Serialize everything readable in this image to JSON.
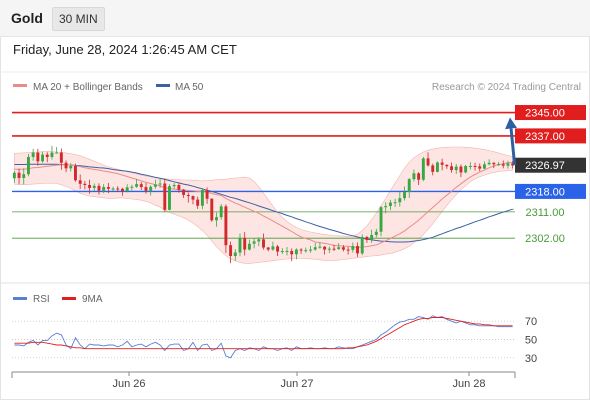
{
  "header": {
    "asset": "Gold",
    "timeframe": "30 MIN",
    "datetime": "Friday, June 28, 2024 1:26:45 AM CET"
  },
  "legend": {
    "ma20": "MA 20 + Bollinger Bands",
    "ma50": "MA 50",
    "credit": "Research © 2024 Trading Central"
  },
  "rsi_legend": {
    "rsi": "RSI",
    "ma9": "9MA"
  },
  "colors": {
    "up_candle": "#38a845",
    "down_candle": "#d22a2a",
    "ma20": "#e98c87",
    "ma50": "#3d5fa8",
    "band": "#fbd0cc",
    "resistance": "#e01e1e",
    "support": "#2a62e8",
    "minor_level": "#4a9a3a",
    "arrow": "#2f5fa3",
    "price_tag": "#333333"
  },
  "chart_data": {
    "type": "candlestick",
    "x_ticks": [
      "Jun 26",
      "Jun 27",
      "Jun 28"
    ],
    "current_price": "2326.97",
    "levels": [
      {
        "value": "2345.00",
        "kind": "resistance"
      },
      {
        "value": "2337.00",
        "kind": "resistance"
      },
      {
        "value": "2318.00",
        "kind": "support"
      },
      {
        "value": "2311.00",
        "kind": "minor"
      },
      {
        "value": "2302.00",
        "kind": "minor"
      }
    ],
    "forecast_arrow": {
      "from": 2327,
      "to": 2345
    },
    "y_range": [
      2287,
      2351
    ],
    "candles": [
      [
        2322.5,
        2324.4,
        2321.0,
        2325.0
      ],
      [
        2324.4,
        2322.6,
        2320.5,
        2325.8
      ],
      [
        2322.6,
        2323.9,
        2320.4,
        2325.9
      ],
      [
        2323.9,
        2329.8,
        2323.2,
        2330.8
      ],
      [
        2329.8,
        2331.3,
        2328.5,
        2332.6
      ],
      [
        2331.3,
        2328.3,
        2326.8,
        2332.6
      ],
      [
        2328.3,
        2330.6,
        2327.8,
        2331.6
      ],
      [
        2330.6,
        2329.8,
        2328.0,
        2331.4
      ],
      [
        2329.8,
        2331.3,
        2328.9,
        2333.6
      ],
      [
        2331.3,
        2331.3,
        2331.2,
        2333.2
      ],
      [
        2331.3,
        2327.8,
        2325.4,
        2332.7
      ],
      [
        2327.8,
        2325.9,
        2324.6,
        2328.6
      ],
      [
        2325.9,
        2326.7,
        2324.8,
        2327.7
      ],
      [
        2326.7,
        2321.8,
        2321.3,
        2327.5
      ],
      [
        2321.8,
        2320.6,
        2318.8,
        2323.8
      ],
      [
        2320.6,
        2320.2,
        2318.7,
        2321.6
      ],
      [
        2320.2,
        2319.2,
        2317.2,
        2322.0
      ],
      [
        2319.2,
        2319.9,
        2318.1,
        2320.7
      ],
      [
        2319.9,
        2318.3,
        2316.9,
        2320.8
      ],
      [
        2318.3,
        2319.5,
        2317.4,
        2320.5
      ],
      [
        2319.5,
        2318.9,
        2317.4,
        2320.9
      ],
      [
        2318.9,
        2319.0,
        2318.1,
        2319.6
      ],
      [
        2319.0,
        2318.9,
        2317.8,
        2319.8
      ],
      [
        2318.9,
        2318.1,
        2316.5,
        2319.2
      ],
      [
        2318.1,
        2319.4,
        2317.7,
        2320.5
      ],
      [
        2319.4,
        2319.6,
        2318.4,
        2320.3
      ],
      [
        2319.6,
        2320.5,
        2319.2,
        2322.2
      ],
      [
        2320.5,
        2319.5,
        2318.5,
        2321.2
      ],
      [
        2319.5,
        2318.2,
        2317.2,
        2320.9
      ],
      [
        2318.2,
        2319.6,
        2316.6,
        2320.1
      ],
      [
        2319.6,
        2320.4,
        2318.9,
        2322.0
      ],
      [
        2320.4,
        2320.7,
        2319.2,
        2322.4
      ],
      [
        2320.7,
        2311.7,
        2310.9,
        2322.3
      ],
      [
        2311.7,
        2319.8,
        2311.5,
        2320.5
      ],
      [
        2319.8,
        2320.2,
        2319.0,
        2320.9
      ],
      [
        2320.2,
        2318.6,
        2317.6,
        2321.0
      ],
      [
        2318.6,
        2316.8,
        2315.8,
        2318.8
      ],
      [
        2316.8,
        2316.4,
        2314.2,
        2317.6
      ],
      [
        2316.4,
        2315.2,
        2313.6,
        2316.6
      ],
      [
        2315.2,
        2313.1,
        2312.0,
        2316.2
      ],
      [
        2313.1,
        2318.5,
        2311.9,
        2319.1
      ],
      [
        2318.5,
        2315.5,
        2313.8,
        2319.4
      ],
      [
        2315.5,
        2308.1,
        2307.6,
        2315.7
      ],
      [
        2308.1,
        2309.2,
        2305.9,
        2310.8
      ],
      [
        2309.2,
        2312.9,
        2308.3,
        2313.7
      ],
      [
        2312.9,
        2299.6,
        2296.9,
        2313.6
      ],
      [
        2299.6,
        2295.9,
        2293.4,
        2300.8
      ],
      [
        2295.9,
        2297.1,
        2294.3,
        2298.2
      ],
      [
        2297.1,
        2302.1,
        2295.8,
        2303.6
      ],
      [
        2302.1,
        2298.1,
        2296.1,
        2304.1
      ],
      [
        2298.1,
        2300.1,
        2297.8,
        2301.5
      ],
      [
        2300.1,
        2300.9,
        2298.5,
        2301.9
      ],
      [
        2300.9,
        2301.6,
        2299.3,
        2302.3
      ],
      [
        2301.6,
        2298.8,
        2298.1,
        2303.6
      ],
      [
        2298.8,
        2298.1,
        2297.5,
        2299.0
      ],
      [
        2298.1,
        2299.2,
        2297.7,
        2300.8
      ],
      [
        2299.2,
        2297.4,
        2295.9,
        2299.7
      ],
      [
        2297.4,
        2297.6,
        2296.6,
        2298.6
      ],
      [
        2297.6,
        2297.6,
        2296.1,
        2299.0
      ],
      [
        2297.6,
        2296.5,
        2294.1,
        2298.5
      ],
      [
        2296.5,
        2298.1,
        2294.8,
        2298.5
      ],
      [
        2298.1,
        2297.8,
        2296.6,
        2298.6
      ],
      [
        2297.8,
        2297.9,
        2297.0,
        2298.8
      ],
      [
        2297.9,
        2298.1,
        2297.0,
        2299.3
      ],
      [
        2298.1,
        2298.9,
        2297.7,
        2300.4
      ],
      [
        2298.9,
        2299.1,
        2298.4,
        2300.6
      ],
      [
        2299.1,
        2298.1,
        2296.4,
        2299.3
      ],
      [
        2298.1,
        2298.4,
        2296.9,
        2299.1
      ],
      [
        2298.4,
        2298.3,
        2297.6,
        2299.8
      ],
      [
        2298.3,
        2298.9,
        2298.0,
        2300.3
      ],
      [
        2298.9,
        2298.1,
        2297.5,
        2299.6
      ],
      [
        2298.1,
        2298.0,
        2296.4,
        2299.0
      ],
      [
        2298.0,
        2299.3,
        2297.1,
        2300.5
      ],
      [
        2299.3,
        2296.8,
        2295.6,
        2300.5
      ],
      [
        2296.8,
        2302.4,
        2296.2,
        2303.3
      ],
      [
        2302.4,
        2301.4,
        2300.4,
        2302.8
      ],
      [
        2301.4,
        2303.1,
        2300.4,
        2304.9
      ],
      [
        2303.1,
        2304.2,
        2302.3,
        2305.2
      ],
      [
        2304.2,
        2312.6,
        2302.7,
        2313.0
      ],
      [
        2312.6,
        2313.0,
        2310.5,
        2314.3
      ],
      [
        2313.0,
        2314.2,
        2311.7,
        2315.1
      ],
      [
        2314.2,
        2314.3,
        2312.7,
        2315.5
      ],
      [
        2314.3,
        2315.7,
        2312.8,
        2317.9
      ],
      [
        2315.7,
        2317.8,
        2314.9,
        2319.7
      ],
      [
        2317.8,
        2322.2,
        2315.8,
        2322.6
      ],
      [
        2322.2,
        2324.2,
        2321.4,
        2325.5
      ],
      [
        2324.2,
        2322.0,
        2320.2,
        2324.6
      ],
      [
        2322.0,
        2329.3,
        2321.5,
        2329.8
      ],
      [
        2329.3,
        2326.9,
        2326.5,
        2331.4
      ],
      [
        2326.9,
        2324.7,
        2323.5,
        2327.5
      ],
      [
        2324.7,
        2327.9,
        2324.5,
        2328.3
      ],
      [
        2327.9,
        2327.1,
        2325.2,
        2329.2
      ],
      [
        2327.1,
        2326.6,
        2325.7,
        2327.3
      ],
      [
        2326.6,
        2325.3,
        2324.4,
        2327.9
      ],
      [
        2325.3,
        2326.5,
        2324.0,
        2327.4
      ],
      [
        2326.5,
        2324.5,
        2322.9,
        2327.2
      ],
      [
        2324.5,
        2326.7,
        2324.2,
        2327.1
      ],
      [
        2326.7,
        2326.7,
        2325.5,
        2328.0
      ],
      [
        2326.7,
        2326.6,
        2325.1,
        2327.8
      ],
      [
        2326.6,
        2325.8,
        2324.9,
        2327.6
      ],
      [
        2325.8,
        2327.3,
        2325.6,
        2328.3
      ],
      [
        2327.3,
        2327.8,
        2326.9,
        2329.0
      ],
      [
        2327.8,
        2327.3,
        2326.0,
        2328.0
      ],
      [
        2327.3,
        2327.3,
        2326.8,
        2328.1
      ],
      [
        2327.3,
        2326.8,
        2325.9,
        2328.6
      ],
      [
        2326.8,
        2327.6,
        2325.8,
        2328.5
      ],
      [
        2327.6,
        2326.9,
        2325.9,
        2328.4
      ]
    ],
    "ma20": [
      2325.6,
      2325.6,
      2325.6,
      2325.8,
      2326.1,
      2326.2,
      2326.4,
      2326.6,
      2326.8,
      2327.0,
      2327.1,
      2327.1,
      2327.0,
      2326.8,
      2326.5,
      2326.1,
      2325.8,
      2325.5,
      2325.3,
      2325.0,
      2324.7,
      2324.4,
      2324.1,
      2323.6,
      2323.1,
      2322.6,
      2322.1,
      2321.6,
      2321.1,
      2320.7,
      2320.3,
      2319.9,
      2319.3,
      2319.0,
      2318.8,
      2318.6,
      2318.5,
      2318.3,
      2318.2,
      2318.0,
      2317.9,
      2317.7,
      2317.3,
      2316.9,
      2316.6,
      2315.6,
      2314.8,
      2314.0,
      2313.4,
      2312.6,
      2311.9,
      2311.2,
      2310.5,
      2309.6,
      2308.8,
      2307.9,
      2307.0,
      2306.1,
      2305.2,
      2304.3,
      2303.3,
      2302.4,
      2301.9,
      2301.4,
      2300.7,
      2300.5,
      2300.2,
      2299.9,
      2299.5,
      2299.4,
      2299.3,
      2299.2,
      2299.0,
      2298.8,
      2299.0,
      2299.1,
      2299.4,
      2299.7,
      2300.4,
      2301.1,
      2301.9,
      2302.7,
      2303.5,
      2304.5,
      2305.7,
      2306.9,
      2308.1,
      2309.6,
      2311.1,
      2312.5,
      2313.9,
      2315.4,
      2316.7,
      2318.0,
      2319.4,
      2320.6,
      2321.8,
      2322.9,
      2323.8,
      2324.6,
      2325.3,
      2326.1,
      2326.7,
      2327.2,
      2327.5,
      2327.8,
      2327.9
    ],
    "ma50": [
      2327.2,
      2327.2,
      2327.2,
      2327.3,
      2327.3,
      2327.3,
      2327.3,
      2327.3,
      2327.3,
      2327.3,
      2327.2,
      2327.1,
      2327.0,
      2326.9,
      2326.8,
      2326.6,
      2326.4,
      2326.3,
      2326.1,
      2326.0,
      2325.8,
      2325.5,
      2325.3,
      2325.1,
      2324.9,
      2324.6,
      2324.3,
      2323.9,
      2323.6,
      2323.2,
      2322.8,
      2322.5,
      2322.1,
      2321.7,
      2321.3,
      2320.9,
      2320.5,
      2320.2,
      2319.8,
      2319.3,
      2318.9,
      2318.4,
      2318.0,
      2317.5,
      2317.0,
      2316.5,
      2316.0,
      2315.6,
      2315.1,
      2314.6,
      2314.1,
      2313.6,
      2313.0,
      2312.5,
      2312.0,
      2311.4,
      2310.9,
      2310.4,
      2309.8,
      2309.3,
      2308.7,
      2308.2,
      2307.6,
      2307.1,
      2306.5,
      2306.0,
      2305.5,
      2305.0,
      2304.6,
      2304.1,
      2303.6,
      2303.2,
      2302.8,
      2302.4,
      2302.0,
      2301.7,
      2301.4,
      2301.2,
      2301.0,
      2300.9,
      2300.8,
      2300.7,
      2300.7,
      2300.7,
      2300.8,
      2301.0,
      2301.2,
      2301.5,
      2301.9,
      2302.3,
      2302.9,
      2303.5,
      2304.1,
      2304.7,
      2305.3,
      2305.8,
      2306.4,
      2307.0,
      2307.6,
      2308.1,
      2308.7,
      2309.3,
      2309.8,
      2310.4,
      2310.9,
      2311.4,
      2311.9
    ],
    "boll_upper": [
      2331.0,
      2331.1,
      2331.2,
      2331.3,
      2331.4,
      2331.5,
      2331.6,
      2331.7,
      2331.6,
      2331.5,
      2331.4,
      2331.2,
      2330.9,
      2330.6,
      2330.2,
      2329.6,
      2329.0,
      2328.3,
      2327.7,
      2327.0,
      2326.4,
      2326.0,
      2325.6,
      2325.2,
      2324.8,
      2324.4,
      2324.0,
      2323.6,
      2323.2,
      2323.0,
      2322.7,
      2322.5,
      2322.4,
      2322.2,
      2322.1,
      2322.0,
      2321.9,
      2321.9,
      2321.8,
      2321.7,
      2321.6,
      2321.7,
      2321.8,
      2322.0,
      2322.1,
      2322.2,
      2322.4,
      2322.6,
      2322.7,
      2322.9,
      2322.6,
      2321.4,
      2319.6,
      2317.4,
      2315.2,
      2313.0,
      2310.8,
      2309.1,
      2307.7,
      2306.6,
      2305.7,
      2305.0,
      2304.5,
      2304.1,
      2303.8,
      2303.5,
      2303.3,
      2303.1,
      2302.9,
      2302.8,
      2302.7,
      2302.6,
      2302.8,
      2303.4,
      2304.6,
      2306.2,
      2308.3,
      2310.6,
      2313.1,
      2315.6,
      2318.2,
      2320.8,
      2323.4,
      2326.0,
      2328.0,
      2329.5,
      2330.6,
      2331.5,
      2332.1,
      2332.5,
      2332.8,
      2333.0,
      2333.1,
      2333.2,
      2333.2,
      2333.2,
      2333.1,
      2333.0,
      2332.8,
      2332.6,
      2332.3,
      2332.0,
      2331.6,
      2331.2,
      2330.7,
      2330.3,
      2329.9
    ],
    "boll_lower": [
      2320.4,
      2320.3,
      2320.3,
      2320.4,
      2320.5,
      2320.6,
      2320.7,
      2320.8,
      2320.8,
      2320.7,
      2320.3,
      2319.7,
      2319.0,
      2318.2,
      2317.4,
      2316.8,
      2316.4,
      2316.2,
      2316.0,
      2315.8,
      2315.6,
      2315.6,
      2315.7,
      2315.8,
      2315.6,
      2315.4,
      2315.2,
      2315.0,
      2314.6,
      2314.0,
      2313.3,
      2312.6,
      2311.6,
      2310.8,
      2310.2,
      2309.6,
      2309.0,
      2308.2,
      2307.2,
      2306.0,
      2304.6,
      2303.0,
      2301.0,
      2299.2,
      2297.5,
      2296.0,
      2294.9,
      2294.2,
      2293.7,
      2293.4,
      2293.3,
      2293.5,
      2293.7,
      2293.9,
      2294.1,
      2294.3,
      2294.5,
      2294.7,
      2294.9,
      2295.0,
      2295.1,
      2295.1,
      2295.0,
      2294.9,
      2294.8,
      2294.6,
      2294.4,
      2294.4,
      2294.4,
      2294.5,
      2294.7,
      2294.9,
      2295.1,
      2295.3,
      2295.5,
      2295.7,
      2295.9,
      2296.0,
      2296.2,
      2296.5,
      2296.8,
      2297.2,
      2297.7,
      2298.4,
      2299.3,
      2300.4,
      2301.7,
      2303.2,
      2305.0,
      2306.9,
      2309.0,
      2311.1,
      2313.2,
      2315.1,
      2316.9,
      2318.6,
      2320.0,
      2321.3,
      2322.3,
      2323.0,
      2323.6,
      2324.1,
      2324.5,
      2324.8,
      2325.0,
      2325.1,
      2325.3
    ],
    "rsi_ticks": [
      "70",
      "50",
      "30"
    ],
    "rsi_range": [
      20,
      80
    ],
    "rsi": [
      44,
      44,
      43,
      47,
      49,
      44,
      49,
      49,
      54,
      57,
      55,
      44,
      40,
      52,
      44,
      40,
      45,
      44,
      44,
      43,
      44,
      44,
      42,
      44,
      48,
      42,
      44,
      45,
      42,
      45,
      47,
      44,
      38,
      44,
      45,
      45,
      38,
      40,
      47,
      38,
      44,
      45,
      38,
      40,
      46,
      32,
      30,
      38,
      40,
      38,
      41,
      40,
      38,
      42,
      40,
      40,
      38,
      40,
      41,
      38,
      42,
      40,
      40,
      41,
      40,
      40,
      41,
      40,
      40,
      42,
      41,
      40,
      40,
      42,
      44,
      46,
      48,
      50,
      55,
      58,
      62,
      66,
      69,
      70,
      72,
      72,
      75,
      74,
      72,
      76,
      74,
      75,
      72,
      70,
      68,
      70,
      68,
      66,
      66,
      65,
      65,
      65,
      65,
      64,
      64,
      64,
      64
    ],
    "rsi_ma9": [
      46,
      46,
      46,
      46,
      47,
      47,
      47,
      46,
      45,
      44,
      44,
      43,
      42,
      41,
      41,
      40,
      40,
      40,
      40,
      40,
      40,
      40,
      40,
      40,
      40,
      40,
      40,
      40,
      40,
      40,
      40,
      40,
      40,
      40,
      40,
      40,
      40,
      40,
      40,
      40,
      40,
      40,
      40,
      40,
      40,
      40,
      40,
      40,
      40,
      40,
      40,
      40,
      40,
      40,
      40,
      40,
      40,
      40,
      40,
      40,
      40,
      40,
      40,
      40,
      40,
      40,
      40,
      40,
      40,
      40,
      40,
      41,
      41,
      42,
      43,
      44,
      46,
      48,
      51,
      54,
      57,
      60,
      63,
      66,
      68,
      70,
      72,
      73,
      73,
      74,
      74,
      74,
      73,
      72,
      71,
      70,
      69,
      68,
      67,
      67,
      66,
      66,
      65,
      65,
      65,
      65,
      65
    ]
  }
}
